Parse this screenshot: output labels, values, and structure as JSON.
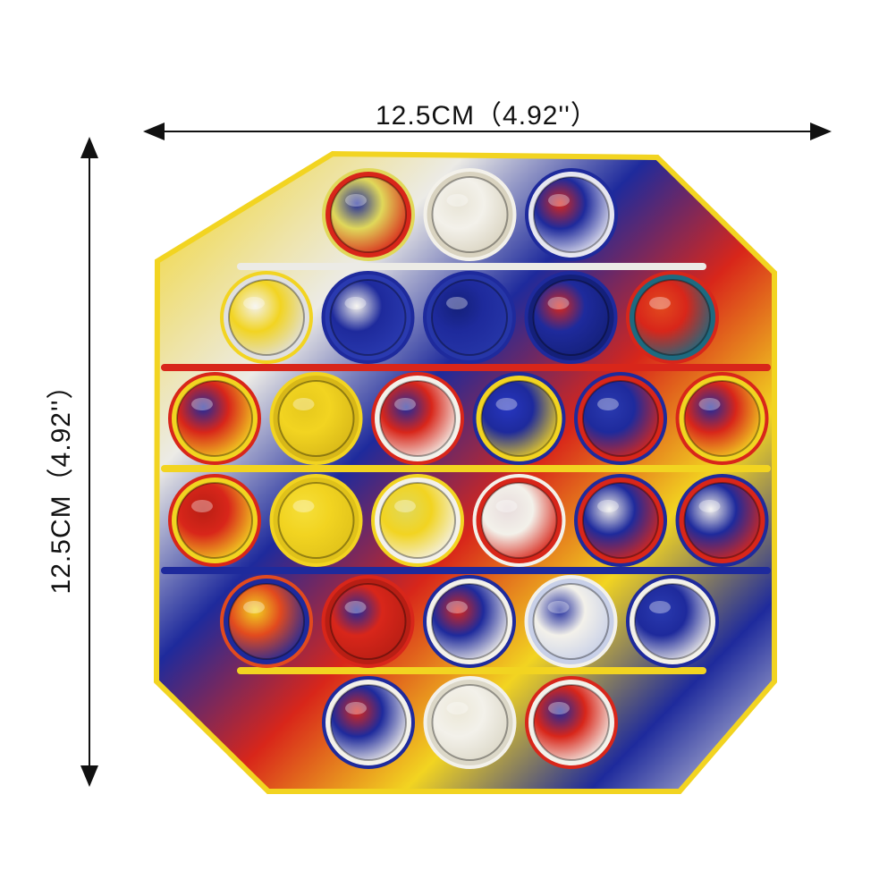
{
  "dimensions": {
    "width_label": "12.5CM（4.92''）",
    "height_label": "12.5CM（4.92''）"
  },
  "product": {
    "shape": "octagon",
    "palette": {
      "red": "#d8261a",
      "yellow": "#f2d421",
      "blue": "#1e2a9c",
      "white": "#ecebe6"
    },
    "rows": [
      {
        "count": 3,
        "bubbles": [
          [
            "#e0d85a",
            "#1e2a9c",
            "#d8261a"
          ],
          [
            "#f3f1ea",
            "#e8e4d6",
            "#d9d3c0"
          ],
          [
            "#1e2a9c",
            "#d8261a",
            "#e6e6f0"
          ]
        ]
      },
      {
        "count": 5,
        "bubbles": [
          [
            "#f2d421",
            "#f3f1ea",
            "#e0e0e0"
          ],
          [
            "#1e2a9c",
            "#f3f1ea",
            "#2a3ab0"
          ],
          [
            "#1e2a9c",
            "#14207a",
            "#2636a8"
          ],
          [
            "#1e2a9c",
            "#d8261a",
            "#14207a"
          ],
          [
            "#d8261a",
            "#e24a1e",
            "#1e6a80"
          ]
        ]
      },
      {
        "count": 6,
        "bubbles": [
          [
            "#d8261a",
            "#1e2a9c",
            "#f2d421"
          ],
          [
            "#f2d421",
            "#e6c81c",
            "#d8b818"
          ],
          [
            "#d8261a",
            "#1e2a9c",
            "#f3f1ea"
          ],
          [
            "#1e2a9c",
            "#2636c0",
            "#f2d421"
          ],
          [
            "#1e2a9c",
            "#2a3ab0",
            "#d8261a"
          ],
          [
            "#d8261a",
            "#1e2a9c",
            "#f2d421"
          ]
        ]
      },
      {
        "count": 6,
        "bubbles": [
          [
            "#d8261a",
            "#b81e14",
            "#f2d421"
          ],
          [
            "#f2d421",
            "#f5df3a",
            "#e0c21a"
          ],
          [
            "#f2d421",
            "#e0d85a",
            "#f3f1ea"
          ],
          [
            "#f3f1ea",
            "#e8dcdc",
            "#d8261a"
          ],
          [
            "#1e2a9c",
            "#f3f1ea",
            "#d8261a"
          ],
          [
            "#1e2a9c",
            "#f3f1ea",
            "#d8261a"
          ]
        ]
      },
      {
        "count": 5,
        "bubbles": [
          [
            "#e24a1e",
            "#f2d421",
            "#1e2a9c"
          ],
          [
            "#d8261a",
            "#1e2a9c",
            "#b81e14"
          ],
          [
            "#1e2a9c",
            "#d8261a",
            "#f3f1ea"
          ],
          [
            "#f3f1ea",
            "#1e2a9c",
            "#c8d0e8"
          ],
          [
            "#1e2a9c",
            "#2a3ab0",
            "#f3f1ea"
          ]
        ]
      },
      {
        "count": 3,
        "bubbles": [
          [
            "#1e2a9c",
            "#d8261a",
            "#f3f1ea"
          ],
          [
            "#f3f1ea",
            "#ece8d8",
            "#dcd8c8"
          ],
          [
            "#d8261a",
            "#1e2a9c",
            "#f3f1ea"
          ]
        ]
      }
    ]
  }
}
